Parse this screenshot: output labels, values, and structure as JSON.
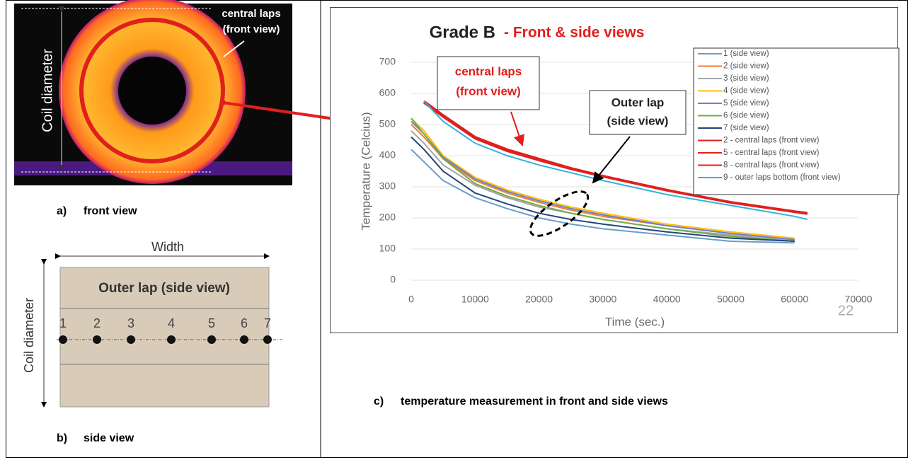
{
  "front_view": {
    "label_lines": [
      "central laps",
      "(front view)"
    ],
    "coil_diameter_label": "Coil diameter",
    "caption_letter": "a)",
    "caption": "front view"
  },
  "side_view": {
    "title": "Outer lap (side view)",
    "width_label": "Width",
    "coil_diameter_label": "Coil diameter",
    "points": [
      "1",
      "2",
      "3",
      "4",
      "5",
      "6",
      "7"
    ],
    "caption_letter": "b)",
    "caption": "side view"
  },
  "chart_data": {
    "type": "line",
    "title": "Grade B",
    "subtitle": "- Front & side views",
    "x_label": "Time (sec.)",
    "y_label": "Temperature (Celcius)",
    "x": [
      0,
      2000,
      5000,
      10000,
      15000,
      20000,
      25000,
      30000,
      40000,
      50000,
      60000,
      62000
    ],
    "series": [
      {
        "name": "1 (side view)",
        "color": "#6a9cc8",
        "values": [
          420,
          380,
          320,
          265,
          230,
          200,
          180,
          165,
          145,
          125,
          120,
          null
        ]
      },
      {
        "name": "2 (side view)",
        "color": "#ed7d31",
        "values": [
          500,
          460,
          390,
          320,
          280,
          250,
          225,
          205,
          175,
          150,
          130,
          null
        ]
      },
      {
        "name": "3 (side view)",
        "color": "#a5a5a5",
        "values": [
          480,
          440,
          370,
          305,
          265,
          235,
          215,
          195,
          165,
          145,
          125,
          null
        ]
      },
      {
        "name": "4 (side view)",
        "color": "#ffc000",
        "values": [
          520,
          480,
          400,
          330,
          290,
          260,
          235,
          215,
          180,
          155,
          135,
          null
        ]
      },
      {
        "name": "5 (side view)",
        "color": "#6f7fd0",
        "values": [
          510,
          470,
          395,
          325,
          285,
          255,
          230,
          210,
          175,
          150,
          130,
          null
        ]
      },
      {
        "name": "6 (side view)",
        "color": "#70ad47",
        "values": [
          520,
          470,
          390,
          310,
          270,
          240,
          215,
          195,
          165,
          140,
          125,
          null
        ]
      },
      {
        "name": "7 (side view)",
        "color": "#264478",
        "values": [
          460,
          420,
          350,
          280,
          245,
          215,
          195,
          180,
          155,
          135,
          125,
          null
        ]
      },
      {
        "name": "2 - central laps (front view)",
        "color": "#e0201c",
        "values": [
          null,
          575,
          530,
          460,
          420,
          390,
          360,
          335,
          290,
          250,
          220,
          215
        ]
      },
      {
        "name": "5 - central laps (front view)",
        "color": "#e0201c",
        "values": [
          null,
          570,
          525,
          455,
          415,
          385,
          357,
          333,
          288,
          249,
          219,
          213
        ]
      },
      {
        "name": "8 - central laps (front view)",
        "color": "#e0201c",
        "values": [
          null,
          573,
          528,
          458,
          418,
          388,
          359,
          334,
          289,
          251,
          221,
          216
        ]
      },
      {
        "name": "9 - outer laps bottom (front view)",
        "color": "#2eb5de",
        "values": [
          null,
          575,
          510,
          440,
          400,
          370,
          345,
          320,
          275,
          240,
          205,
          195
        ]
      }
    ],
    "xlim": [
      0,
      70000
    ],
    "xticks": [
      0,
      10000,
      20000,
      30000,
      40000,
      50000,
      60000,
      70000
    ],
    "ylim": [
      0,
      700
    ],
    "yticks": [
      0,
      100,
      200,
      300,
      400,
      500,
      600,
      700
    ],
    "annotations": [
      {
        "lines": [
          "central laps",
          "(front view)"
        ]
      },
      {
        "lines": [
          "Outer lap",
          "(side view)"
        ]
      }
    ],
    "page_number": "22",
    "caption_letter": "c)",
    "caption": "temperature measurement in front and side views"
  }
}
